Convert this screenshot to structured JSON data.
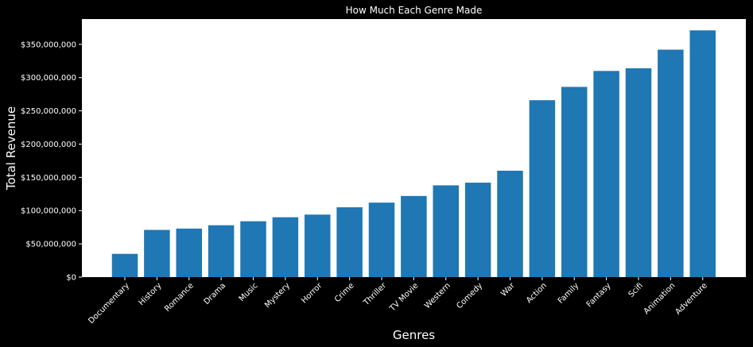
{
  "chart_data": {
    "type": "bar",
    "title": "How Much Each Genre Made",
    "xlabel": "Genres",
    "ylabel": "Total Revenue",
    "categories": [
      "Documentary",
      "History",
      "Romance",
      "Drama",
      "Music",
      "Mystery",
      "Horror",
      "Crime",
      "Thriller",
      "TV Movie",
      "Western",
      "Comedy",
      "War",
      "Action",
      "Family",
      "Fantasy",
      "Scifi",
      "Animation",
      "Adventure"
    ],
    "values": [
      35000000,
      71000000,
      73000000,
      78000000,
      84000000,
      90000000,
      94000000,
      105000000,
      112000000,
      122000000,
      138000000,
      142000000,
      160000000,
      266000000,
      286000000,
      310000000,
      314000000,
      342000000,
      371000000
    ],
    "ylim": [
      0,
      388000000
    ],
    "yticks": [
      0,
      50000000,
      100000000,
      150000000,
      200000000,
      250000000,
      300000000,
      350000000
    ],
    "ytick_labels": [
      "$0",
      "$50,000,000",
      "$100,000,000",
      "$150,000,000",
      "$200,000,000",
      "$250,000,000",
      "$300,000,000",
      "$350,000,000"
    ],
    "grid": false,
    "legend": "none",
    "colors": {
      "background": "#000000",
      "plot_area": "#ffffff",
      "bar": "#1f77b4",
      "text": "#ffffff"
    }
  }
}
